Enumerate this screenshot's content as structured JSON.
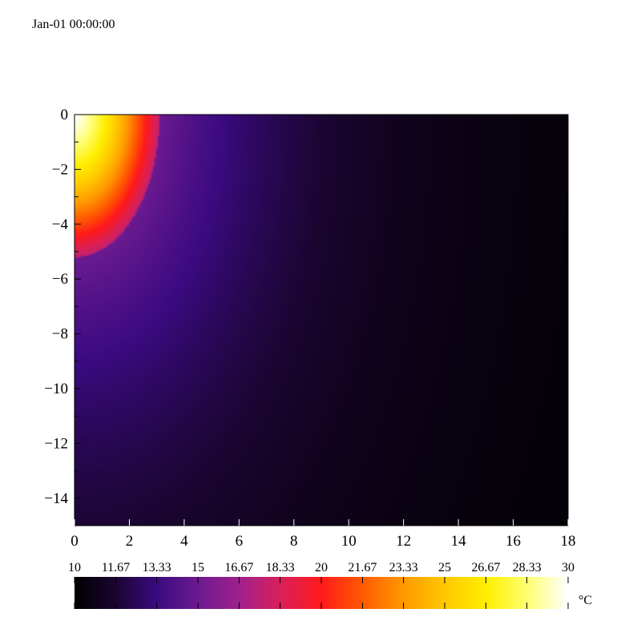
{
  "timestamp": "Jan-01 00:00:00",
  "chart_data": {
    "type": "heatmap",
    "x_ticks": [
      "0",
      "2",
      "4",
      "6",
      "8",
      "10",
      "12",
      "14",
      "16",
      "18"
    ],
    "y_ticks": [
      "0",
      "−2",
      "−4",
      "−6",
      "−8",
      "−10",
      "−12",
      "−14"
    ],
    "xlim": [
      0,
      18
    ],
    "ylim": [
      -15,
      0
    ],
    "colorbar": {
      "unit": "°C",
      "range": [
        10,
        30
      ],
      "tick_labels": [
        "10",
        "11.67",
        "13.33",
        "15",
        "16.67",
        "18.33",
        "20",
        "21.67",
        "23.33",
        "25",
        "26.67",
        "28.33",
        "30"
      ],
      "colormap": [
        "#000000",
        "#1a0530",
        "#3b0a80",
        "#6b1a90",
        "#a0208c",
        "#d8205a",
        "#ff1a1a",
        "#ff5a00",
        "#ff9a00",
        "#ffc800",
        "#ffee00",
        "#ffff70",
        "#ffffff"
      ]
    },
    "hot_region": {
      "description_free_params": true,
      "peak_value": 30,
      "x_extent": [
        0,
        3.1
      ],
      "y_extent": [
        -5.2,
        0
      ]
    }
  }
}
